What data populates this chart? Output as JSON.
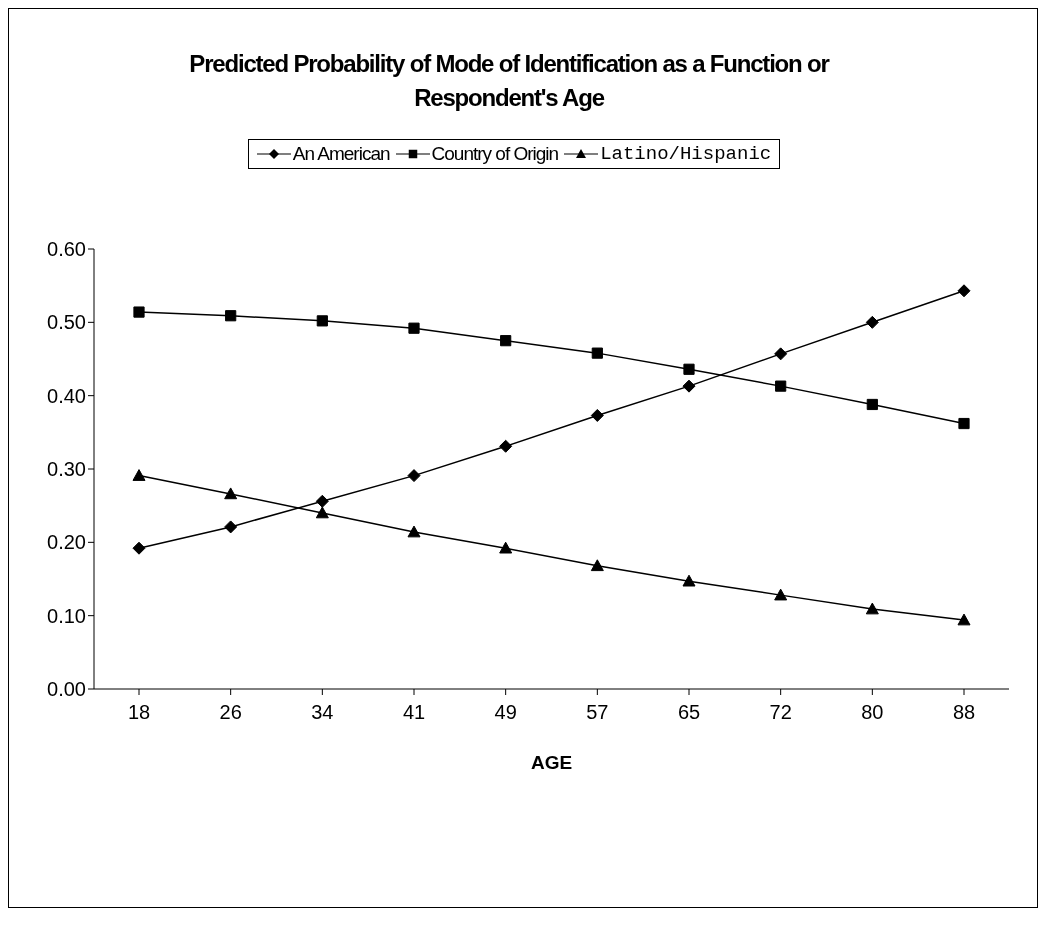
{
  "chart_data": {
    "type": "line",
    "title": "Predicted Probability of Mode of Identification as a Function or Respondent's Age",
    "xlabel": "AGE",
    "categories": [
      "18",
      "26",
      "34",
      "41",
      "49",
      "57",
      "65",
      "72",
      "80",
      "88"
    ],
    "series": [
      {
        "name": "An American",
        "color": "#000000",
        "marker": "diamond",
        "values": [
          0.192,
          0.221,
          0.256,
          0.291,
          0.331,
          0.373,
          0.413,
          0.457,
          0.5,
          0.543
        ]
      },
      {
        "name": "Country of Origin",
        "color": "#000000",
        "marker": "square",
        "values": [
          0.514,
          0.509,
          0.502,
          0.492,
          0.475,
          0.458,
          0.436,
          0.413,
          0.388,
          0.362
        ]
      },
      {
        "name": "Latino/Hispanic",
        "color": "#000000",
        "marker": "triangle",
        "values": [
          0.291,
          0.266,
          0.24,
          0.214,
          0.192,
          0.168,
          0.147,
          0.128,
          0.109,
          0.094
        ]
      }
    ],
    "ylim": [
      0,
      0.6
    ],
    "yticks": [
      {
        "value": 0,
        "label": "0.00"
      },
      {
        "value": 0.1,
        "label": "0.10"
      },
      {
        "value": 0.2,
        "label": "0.20"
      },
      {
        "value": 0.3,
        "label": "0.30"
      },
      {
        "value": 0.4,
        "label": "0.40"
      },
      {
        "value": 0.5,
        "label": "0.50"
      },
      {
        "value": 0.6,
        "label": "0.60"
      }
    ],
    "grid": false,
    "legend": "top",
    "line_style": "solid"
  }
}
